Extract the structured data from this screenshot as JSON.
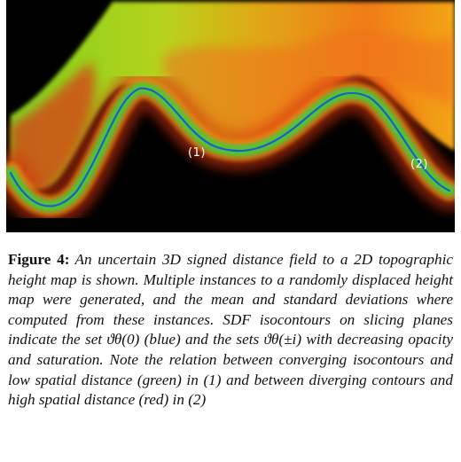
{
  "figure": {
    "marker_1": "(1)",
    "marker_2": "(2)"
  },
  "caption": {
    "label": "Figure 4:",
    "text": "An uncertain 3D signed distance field to a 2D topographic height map is shown. Multiple instances to a randomly displaced height map were generated, and the mean and standard deviations where computed from these instances. SDF isocontours on slicing planes indicate the set ϑθ(0) (blue) and the sets ϑθ(±i) with decreasing opacity and saturation. Note the relation between converging isocontours and low spatial distance (green) in (1) and between diverging contours and high spatial distance (red) in (2)"
  },
  "colors": {
    "background": "#000000",
    "near_green": "#3ecb3a",
    "far_red": "#e02a10",
    "mid_orange": "#ef8a12",
    "isocontour_blue": "#2a56c9"
  }
}
